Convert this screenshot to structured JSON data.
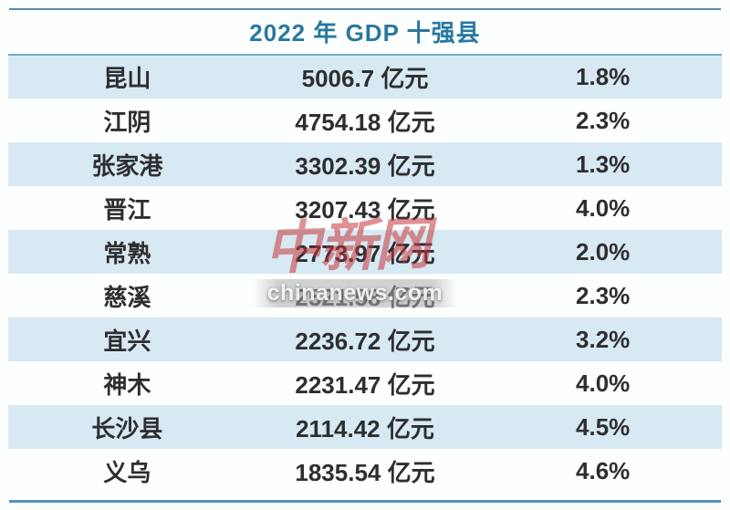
{
  "title": "2022 年 GDP 十强县",
  "rows": [
    {
      "county": "昆山",
      "gdp": "5006.7 亿元",
      "growth": "1.8%"
    },
    {
      "county": "江阴",
      "gdp": "4754.18 亿元",
      "growth": "2.3%"
    },
    {
      "county": "张家港",
      "gdp": "3302.39 亿元",
      "growth": "1.3%"
    },
    {
      "county": "晋江",
      "gdp": "3207.43 亿元",
      "growth": "4.0%"
    },
    {
      "county": "常熟",
      "gdp": "2773.97 亿元",
      "growth": "2.0%"
    },
    {
      "county": "慈溪",
      "gdp": "2521.58 亿元",
      "growth": "2.3%"
    },
    {
      "county": "宜兴",
      "gdp": "2236.72 亿元",
      "growth": "3.2%"
    },
    {
      "county": "神木",
      "gdp": "2231.47 亿元",
      "growth": "4.0%"
    },
    {
      "county": "长沙县",
      "gdp": "2114.42 亿元",
      "growth": "4.5%"
    },
    {
      "county": "义乌",
      "gdp": "1835.54 亿元",
      "growth": "4.6%"
    }
  ],
  "watermark": {
    "logo": "中新网",
    "site": "chinanews.com"
  },
  "colors": {
    "stripe_blue": "#d7e9f2",
    "title_teal": "#2878a0",
    "rule_top": "#5d89a9",
    "rule_bottom": "#4d94ba",
    "row_top_border": "#74a9c6",
    "body_text": "#2e2e30",
    "watermark_red": "#c6343a"
  },
  "chart_data": {
    "type": "table",
    "title": "2022 年 GDP 十强县",
    "columns": [
      "county",
      "gdp_yi_yuan",
      "growth_pct"
    ],
    "rows": [
      [
        "昆山",
        5006.7,
        1.8
      ],
      [
        "江阴",
        4754.18,
        2.3
      ],
      [
        "张家港",
        3302.39,
        1.3
      ],
      [
        "晋江",
        3207.43,
        4.0
      ],
      [
        "常熟",
        2773.97,
        2.0
      ],
      [
        "慈溪",
        2521.58,
        2.3
      ],
      [
        "宜兴",
        2236.72,
        3.2
      ],
      [
        "神木",
        2231.47,
        4.0
      ],
      [
        "长沙县",
        2114.42,
        4.5
      ],
      [
        "义乌",
        1835.54,
        4.6
      ]
    ],
    "layout": {
      "striped": true,
      "stripe_rows": "odd",
      "top_rule": true,
      "bottom_rule": true,
      "column_alignment": [
        "center",
        "center",
        "center"
      ]
    }
  }
}
